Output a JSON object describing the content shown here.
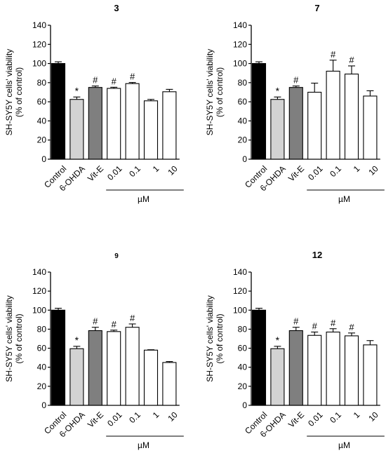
{
  "chart_data": [
    {
      "type": "bar",
      "title": "3",
      "ylabel": "SH-SY5Y cells' viability",
      "ylabel2": "(% of control)",
      "ylim": [
        0,
        140
      ],
      "yticks": [
        0,
        20,
        40,
        60,
        80,
        100,
        120,
        140
      ],
      "categories": [
        "Control",
        "6-OHDA",
        "Vit-E",
        "0.01",
        "0.1",
        "1",
        "10"
      ],
      "values": [
        100,
        62.5,
        75,
        74,
        79,
        61,
        70.5
      ],
      "errors": [
        1.8,
        2.5,
        1.5,
        1.2,
        1.2,
        1.5,
        2.5
      ],
      "marks": [
        "",
        "*",
        "#",
        "#",
        "#",
        "",
        ""
      ],
      "fills": [
        "#000000",
        "#d3d3d3",
        "#7f7f7f",
        "#ffffff",
        "#ffffff",
        "#ffffff",
        "#ffffff"
      ],
      "unit_label": "µM"
    },
    {
      "type": "bar",
      "title": "7",
      "ylabel": "SH-SY5Y cells' viability",
      "ylabel2": "(% of control)",
      "ylim": [
        0,
        140
      ],
      "yticks": [
        0,
        20,
        40,
        60,
        80,
        100,
        120,
        140
      ],
      "categories": [
        "Control",
        "6-OHDA",
        "Vit-E",
        "0.01",
        "0.1",
        "1",
        "10"
      ],
      "values": [
        100,
        62.5,
        75,
        70,
        92,
        89,
        66
      ],
      "errors": [
        1.8,
        2.5,
        1.5,
        9.5,
        11.5,
        8.5,
        5.5
      ],
      "marks": [
        "",
        "*",
        "#",
        "",
        "#",
        "#",
        ""
      ],
      "fills": [
        "#000000",
        "#d3d3d3",
        "#7f7f7f",
        "#ffffff",
        "#ffffff",
        "#ffffff",
        "#ffffff"
      ],
      "unit_label": "µM"
    },
    {
      "type": "bar",
      "title": "9",
      "ylabel": "SH-SY5Y cells' viability",
      "ylabel2": "(% of control)",
      "ylim": [
        0,
        140
      ],
      "yticks": [
        0,
        20,
        40,
        60,
        80,
        100,
        120,
        140
      ],
      "categories": [
        "Control",
        "6-OHDA",
        "Vit-E",
        "0.01",
        "0.1",
        "1",
        "10"
      ],
      "values": [
        100,
        59.5,
        78.5,
        77.5,
        82,
        58,
        45
      ],
      "errors": [
        2,
        2.5,
        3.5,
        1.5,
        3.5,
        0.4,
        1
      ],
      "marks": [
        "",
        "*",
        "#",
        "#",
        "#",
        "",
        ""
      ],
      "fills": [
        "#000000",
        "#d3d3d3",
        "#7f7f7f",
        "#ffffff",
        "#ffffff",
        "#ffffff",
        "#ffffff"
      ],
      "unit_label": "µM"
    },
    {
      "type": "bar",
      "title": "12",
      "ylabel": "SH-SY5Y cells' viability",
      "ylabel2": "(% of control)",
      "ylim": [
        0,
        140
      ],
      "yticks": [
        0,
        20,
        40,
        60,
        80,
        100,
        120,
        140
      ],
      "categories": [
        "Control",
        "6-OHDA",
        "Vit-E",
        "0.01",
        "0.1",
        "1",
        "10"
      ],
      "values": [
        100,
        59.5,
        78.5,
        73.5,
        77,
        73,
        63.5
      ],
      "errors": [
        2,
        2.5,
        3.5,
        3.5,
        3.5,
        3,
        4.5
      ],
      "marks": [
        "",
        "*",
        "#",
        "#",
        "#",
        "#",
        ""
      ],
      "fills": [
        "#000000",
        "#d3d3d3",
        "#7f7f7f",
        "#ffffff",
        "#ffffff",
        "#ffffff",
        "#ffffff"
      ],
      "unit_label": "µM"
    }
  ]
}
